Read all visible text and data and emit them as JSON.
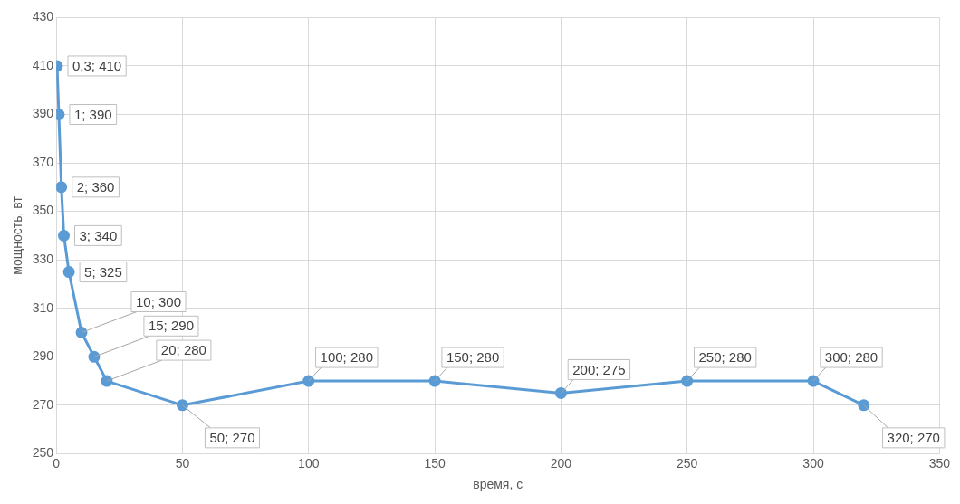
{
  "chart_data": {
    "type": "line",
    "xlabel": "время, с",
    "ylabel": "мощность, вт",
    "x": [
      0.3,
      1,
      2,
      3,
      5,
      10,
      15,
      20,
      50,
      100,
      150,
      200,
      250,
      300,
      320
    ],
    "values": [
      410,
      390,
      360,
      340,
      325,
      300,
      290,
      280,
      270,
      280,
      280,
      275,
      280,
      280,
      270
    ],
    "value_labels": [
      "0,3; 410",
      "1; 390",
      "2; 360",
      "3; 340",
      "5; 325",
      "10; 300",
      "15; 290",
      "20; 280",
      "50; 270",
      "100; 280",
      "150; 280",
      "200; 275",
      "250; 280",
      "300; 280",
      "320; 270"
    ],
    "color": "#5b9bd5",
    "xlim": [
      0,
      350
    ],
    "xticks": [
      0,
      50,
      100,
      150,
      200,
      250,
      300,
      350
    ],
    "ylim": [
      250,
      430
    ],
    "yticks": [
      250,
      270,
      290,
      310,
      330,
      350,
      370,
      390,
      410,
      430
    ],
    "grid": true,
    "marker": "circle",
    "line_style": "solid",
    "legend": false
  }
}
